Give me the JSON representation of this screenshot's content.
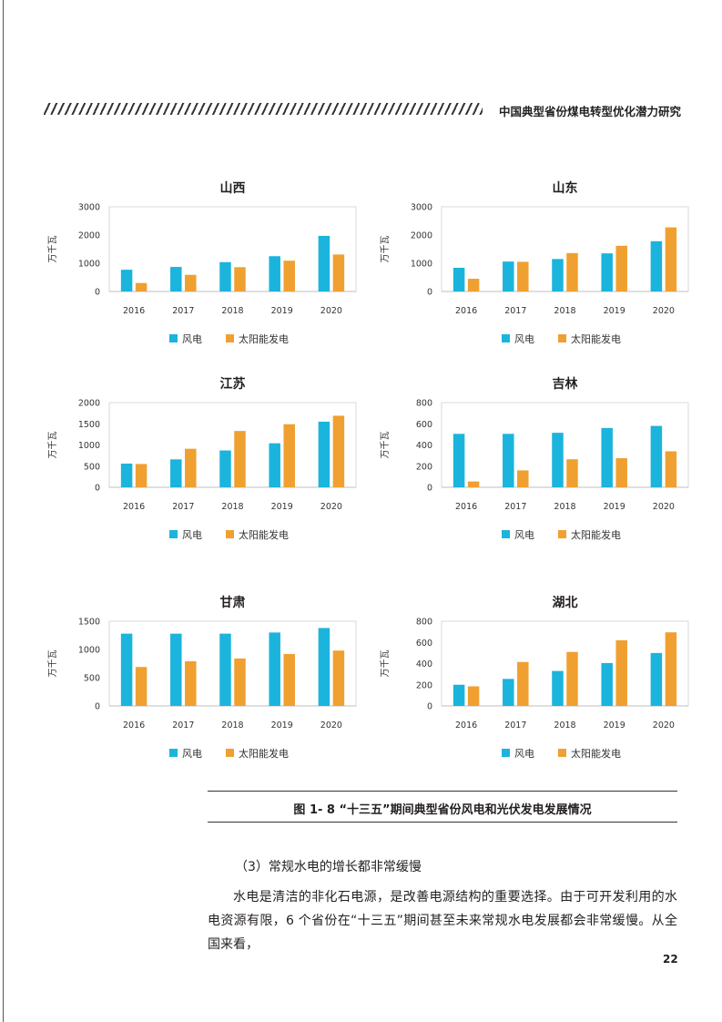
{
  "header": {
    "title": "中国典型省份煤电转型优化潜力研究"
  },
  "chart_data": [
    {
      "type": "bar",
      "title": "山西",
      "ylabel": "万千瓦",
      "ylim": [
        0,
        3000
      ],
      "yticks": [
        0,
        1000,
        2000,
        3000
      ],
      "categories": [
        "2016",
        "2017",
        "2018",
        "2019",
        "2020"
      ],
      "series": [
        {
          "name": "风电",
          "color": "#1bb4dd",
          "values": [
            770,
            870,
            1040,
            1250,
            1970
          ]
        },
        {
          "name": "太阳能发电",
          "color": "#f0a030",
          "values": [
            300,
            590,
            860,
            1090,
            1310
          ]
        }
      ]
    },
    {
      "type": "bar",
      "title": "山东",
      "ylabel": "万千瓦",
      "ylim": [
        0,
        3000
      ],
      "yticks": [
        0,
        1000,
        2000,
        3000
      ],
      "categories": [
        "2016",
        "2017",
        "2018",
        "2019",
        "2020"
      ],
      "series": [
        {
          "name": "风电",
          "color": "#1bb4dd",
          "values": [
            840,
            1060,
            1150,
            1350,
            1780
          ]
        },
        {
          "name": "太阳能发电",
          "color": "#f0a030",
          "values": [
            450,
            1050,
            1360,
            1620,
            2270
          ]
        }
      ]
    },
    {
      "type": "bar",
      "title": "江苏",
      "ylabel": "万千瓦",
      "ylim": [
        0,
        2000
      ],
      "yticks": [
        0,
        500,
        1000,
        1500,
        2000
      ],
      "categories": [
        "2016",
        "2017",
        "2018",
        "2019",
        "2020"
      ],
      "series": [
        {
          "name": "风电",
          "color": "#1bb4dd",
          "values": [
            560,
            660,
            870,
            1040,
            1550
          ]
        },
        {
          "name": "太阳能发电",
          "color": "#f0a030",
          "values": [
            550,
            910,
            1330,
            1490,
            1690
          ]
        }
      ]
    },
    {
      "type": "bar",
      "title": "吉林",
      "ylabel": "万千瓦",
      "ylim": [
        0,
        800
      ],
      "yticks": [
        0,
        200,
        400,
        600,
        800
      ],
      "categories": [
        "2016",
        "2017",
        "2018",
        "2019",
        "2020"
      ],
      "series": [
        {
          "name": "风电",
          "color": "#1bb4dd",
          "values": [
            505,
            505,
            515,
            560,
            580
          ]
        },
        {
          "name": "太阳能发电",
          "color": "#f0a030",
          "values": [
            55,
            160,
            265,
            275,
            340
          ]
        }
      ]
    },
    {
      "type": "bar",
      "title": "甘肃",
      "ylabel": "万千瓦",
      "ylim": [
        0,
        1500
      ],
      "yticks": [
        0,
        500,
        1000,
        1500
      ],
      "categories": [
        "2016",
        "2017",
        "2018",
        "2019",
        "2020"
      ],
      "series": [
        {
          "name": "风电",
          "color": "#1bb4dd",
          "values": [
            1280,
            1280,
            1280,
            1300,
            1380
          ]
        },
        {
          "name": "太阳能发电",
          "color": "#f0a030",
          "values": [
            690,
            790,
            840,
            920,
            980
          ]
        }
      ]
    },
    {
      "type": "bar",
      "title": "湖北",
      "ylabel": "万千瓦",
      "ylim": [
        0,
        800
      ],
      "yticks": [
        0,
        200,
        400,
        600,
        800
      ],
      "categories": [
        "2016",
        "2017",
        "2018",
        "2019",
        "2020"
      ],
      "series": [
        {
          "name": "风电",
          "color": "#1bb4dd",
          "values": [
            200,
            255,
            330,
            405,
            500
          ]
        },
        {
          "name": "太阳能发电",
          "color": "#f0a030",
          "values": [
            185,
            415,
            510,
            620,
            695
          ]
        }
      ]
    }
  ],
  "figure": {
    "caption": "图 1- 8 “十三五”期间典型省份风电和光伏发电发展情况"
  },
  "section": {
    "heading": "（3）常规水电的增长都非常缓慢"
  },
  "body": {
    "paragraph": "水电是清洁的非化石电源，是改善电源结构的重要选择。由于可开发利用的水电资源有限，6 个省份在“十三五”期间甚至未来常规水电发展都会非常缓慢。从全国来看，"
  },
  "footer": {
    "page_number": "22"
  }
}
